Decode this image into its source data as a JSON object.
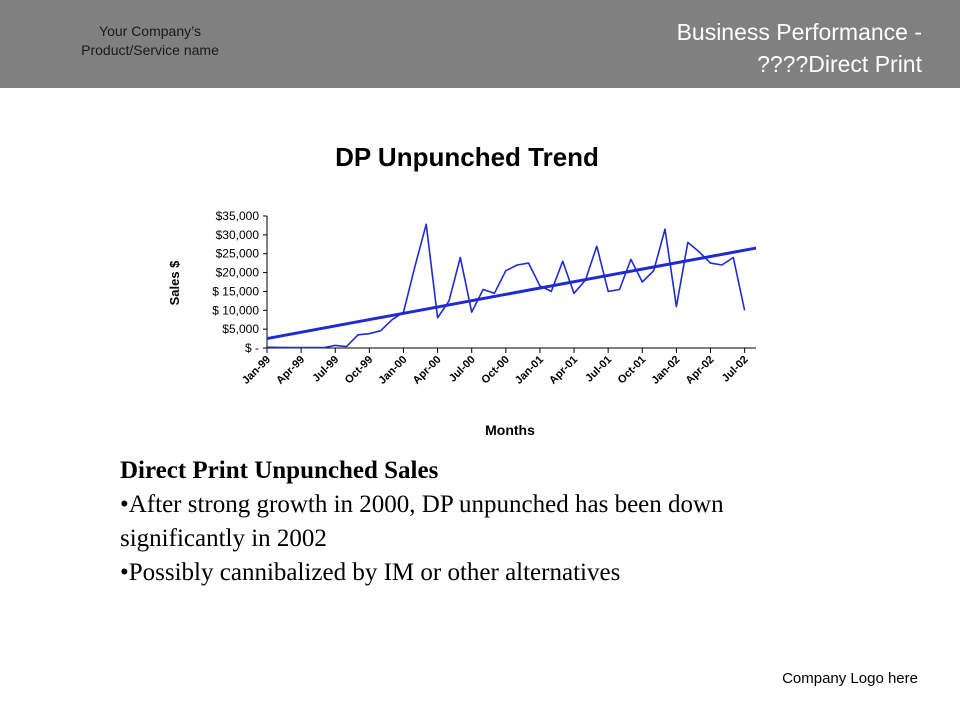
{
  "header": {
    "company_line1": "Your Company’s",
    "company_line2": "Product/Service name",
    "title_line1": "Business Performance -",
    "title_line2": "????Direct Print"
  },
  "colors": {
    "header_bg": "#808080",
    "series": "#1f2bd0",
    "trend": "#1f2bd0"
  },
  "chart_data": {
    "type": "line",
    "title": "DP Unpunched Trend",
    "xlabel": "Months",
    "ylabel": "Sales $",
    "ylim": [
      0,
      35000
    ],
    "y_ticks": [
      0,
      5000,
      10000,
      15000,
      20000,
      25000,
      30000,
      35000
    ],
    "y_tick_labels": [
      "$ -",
      "$5,000",
      "$ 10,000",
      "$ 15,000",
      "$20,000",
      "$25,000",
      "$30,000",
      "$35,000"
    ],
    "x_tick_labels": [
      "Jan-99",
      "Apr-99",
      "Jul-99",
      "Oct-99",
      "Jan-00",
      "Apr-00",
      "Jul-00",
      "Oct-00",
      "Jan-01",
      "Apr-01",
      "Jul-01",
      "Oct-01",
      "Jan-02",
      "Apr-02",
      "Jul-02"
    ],
    "x_tick_months": [
      0,
      3,
      6,
      9,
      12,
      15,
      18,
      21,
      24,
      27,
      30,
      33,
      36,
      39,
      42
    ],
    "x_range": [
      0,
      43
    ],
    "grid": false,
    "series": [
      {
        "x": [
          0,
          1,
          2,
          3,
          4,
          5,
          6,
          7,
          8,
          9,
          10,
          11,
          12,
          13,
          14,
          15,
          16,
          17,
          18,
          19,
          20,
          21,
          22,
          23,
          24,
          25,
          26,
          27,
          28,
          29,
          30,
          31,
          32,
          33,
          34,
          35,
          36,
          37,
          38,
          39,
          40,
          41,
          42,
          43
        ],
        "values": [
          200,
          150,
          100,
          100,
          100,
          100,
          700,
          400,
          3500,
          3800,
          4600,
          7500,
          9500,
          21500,
          32800,
          8000,
          12500,
          24000,
          9500,
          15500,
          14500,
          20500,
          22000,
          22500,
          16500,
          15000,
          23000,
          14500,
          18000,
          27000,
          15000,
          15500,
          23500,
          17500,
          20500,
          31500,
          11000,
          28000,
          25500,
          22500,
          22000,
          24000,
          10000,
          null
        ]
      },
      {
        "type": "trendline",
        "x": [
          0,
          43
        ],
        "values": [
          2500,
          26500
        ]
      }
    ]
  },
  "body": {
    "heading": "Direct Print Unpunched Sales",
    "bullet1_line1": "•After strong growth in 2000, DP unpunched has been down",
    "bullet1_line2": "significantly in 2002",
    "bullet2": "•Possibly cannibalized by IM or other alternatives"
  },
  "footer": {
    "logo_text": "Company Logo here"
  }
}
